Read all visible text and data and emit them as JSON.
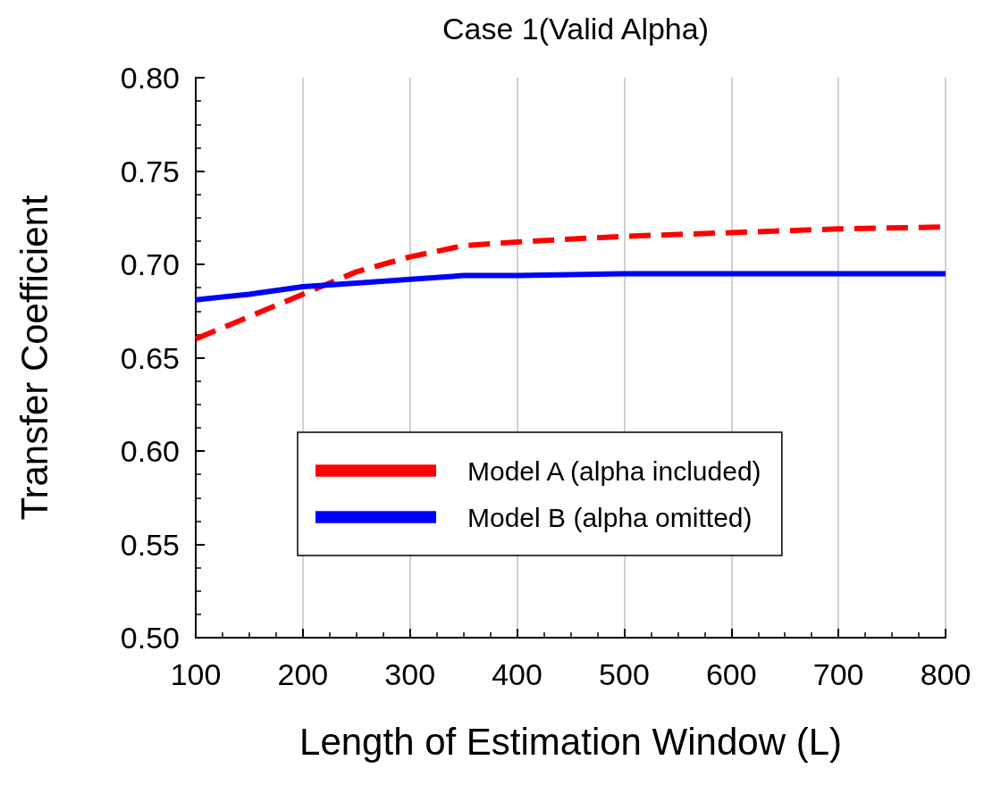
{
  "chart_data": {
    "type": "line",
    "title": "Case 1(Valid Alpha)",
    "xlabel": "Length of Estimation Window (L)",
    "ylabel": "Transfer Coefficient",
    "x": [
      100,
      150,
      200,
      250,
      300,
      350,
      400,
      500,
      600,
      700,
      800
    ],
    "series": [
      {
        "name": "Model A (alpha included)",
        "color": "#ff0000",
        "line_style": "dashed",
        "values": [
          0.66,
          0.672,
          0.684,
          0.696,
          0.704,
          0.71,
          0.712,
          0.715,
          0.717,
          0.719,
          0.72
        ]
      },
      {
        "name": "Model B (alpha omitted)",
        "color": "#0000ff",
        "line_style": "solid",
        "values": [
          0.681,
          0.684,
          0.688,
          0.69,
          0.692,
          0.694,
          0.694,
          0.695,
          0.695,
          0.695,
          0.695
        ]
      }
    ],
    "xlim": [
      100,
      800
    ],
    "xticks": [
      100,
      200,
      300,
      400,
      500,
      600,
      700,
      800
    ],
    "ylim": [
      0.5,
      0.8
    ],
    "yticks": [
      {
        "value": 0.5,
        "label": "0.50"
      },
      {
        "value": 0.55,
        "label": "0.55"
      },
      {
        "value": 0.6,
        "label": "0.60"
      },
      {
        "value": 0.65,
        "label": "0.65"
      },
      {
        "value": 0.7,
        "label": "0.70"
      },
      {
        "value": 0.75,
        "label": "0.75"
      },
      {
        "value": 0.8,
        "label": "0.80"
      }
    ],
    "grid": "x",
    "legend": "bottom",
    "marker": "none"
  }
}
